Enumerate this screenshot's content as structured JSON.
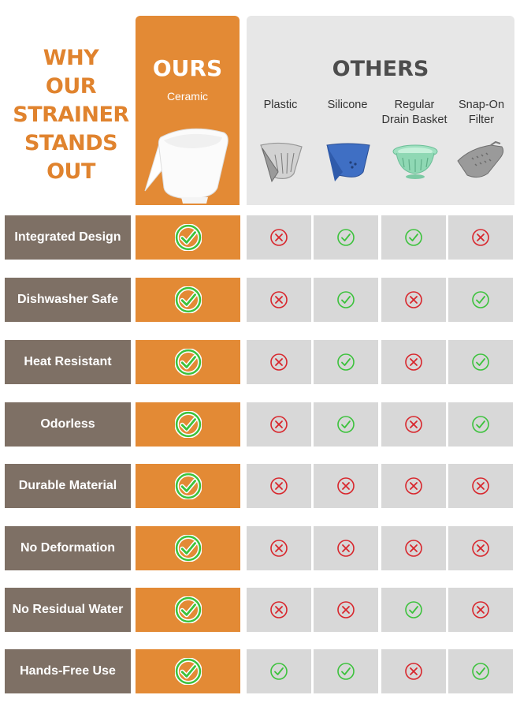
{
  "headline": [
    "WHY",
    "OUR",
    "STRAINER",
    "STANDS",
    "OUT"
  ],
  "ours": {
    "title": "OURS",
    "subtitle": "Ceramic",
    "image": "ceramic-strainer-bowl"
  },
  "others": {
    "title": "OTHERS",
    "columns": [
      {
        "label_lines": [
          "Plastic"
        ],
        "image": "plastic-strainer"
      },
      {
        "label_lines": [
          "Silicone"
        ],
        "image": "silicone-strainer"
      },
      {
        "label_lines": [
          "Regular",
          "Drain Basket"
        ],
        "image": "drain-basket"
      },
      {
        "label_lines": [
          "Snap-On",
          "Filter"
        ],
        "image": "snap-on-filter"
      }
    ]
  },
  "features": [
    {
      "label": "Integrated Design",
      "ours": true,
      "others": [
        false,
        true,
        true,
        false
      ]
    },
    {
      "label": "Dishwasher Safe",
      "ours": true,
      "others": [
        false,
        true,
        false,
        true
      ]
    },
    {
      "label": "Heat Resistant",
      "ours": true,
      "others": [
        false,
        true,
        false,
        true
      ]
    },
    {
      "label": "Odorless",
      "ours": true,
      "others": [
        false,
        true,
        false,
        true
      ]
    },
    {
      "label": "Durable Material",
      "ours": true,
      "others": [
        false,
        false,
        false,
        false
      ]
    },
    {
      "label": "No Deformation",
      "ours": true,
      "others": [
        false,
        false,
        false,
        false
      ]
    },
    {
      "label": "No Residual Water",
      "ours": true,
      "others": [
        false,
        false,
        true,
        false
      ]
    },
    {
      "label": "Hands-Free Use",
      "ours": true,
      "others": [
        true,
        true,
        false,
        true
      ]
    }
  ],
  "colors": {
    "accent": "#e38a35",
    "headline": "#e0832e",
    "label_bg": "#7e7065",
    "others_bg": "#e7e7e7",
    "cell_bg": "#d8d8d8",
    "check": "#3cc23c",
    "cross": "#d8262c"
  },
  "icons": {
    "yes": "check-circle-icon",
    "no": "x-circle-icon"
  }
}
